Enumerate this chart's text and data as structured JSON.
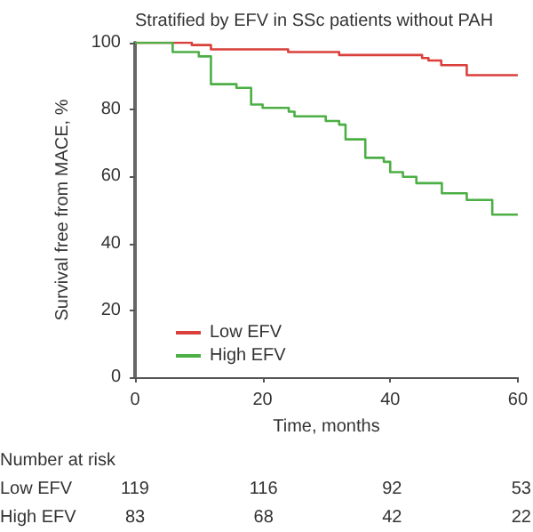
{
  "chart_data": {
    "type": "step",
    "title": "Stratified by EFV in SSc patients without PAH",
    "xlabel": "Time, months",
    "ylabel": "Survival free from MACE, %",
    "series": [
      {
        "name": "Low EFV",
        "color": "#d9403b",
        "x": [
          0,
          8.9,
          11.9,
          24,
          32,
          45,
          46,
          48,
          52,
          60
        ],
        "values": [
          100,
          99.3,
          98,
          97.2,
          96.3,
          95.4,
          94.7,
          93.3,
          90.3,
          90.3
        ]
      },
      {
        "name": "High EFV",
        "color": "#4caf45",
        "x": [
          0,
          5.9,
          10,
          11.9,
          15.9,
          18.2,
          20,
          24.1,
          25,
          29.9,
          32,
          33,
          36.1,
          39,
          40,
          42,
          44.1,
          48.1,
          52,
          56,
          60
        ],
        "values": [
          100,
          97.2,
          95.9,
          87.6,
          86.5,
          81.5,
          80.5,
          79.4,
          78,
          76.6,
          75.5,
          71.1,
          65.6,
          64.4,
          61.3,
          59.9,
          58,
          55,
          53,
          48.6,
          48.6
        ]
      }
    ],
    "xlim": [
      0,
      60
    ],
    "xticks": [
      0,
      20,
      40,
      60
    ],
    "ylim": [
      0,
      100
    ],
    "yticks": [
      0,
      20,
      40,
      60,
      80,
      100
    ],
    "grid": false,
    "legend": "bottom left",
    "marker": "none",
    "line_style": "solid",
    "annotations": [
      "Number at risk",
      "Low EFV",
      "119",
      "116",
      "92",
      "53",
      "High EFV",
      "83",
      "68",
      "42",
      "22"
    ]
  }
}
